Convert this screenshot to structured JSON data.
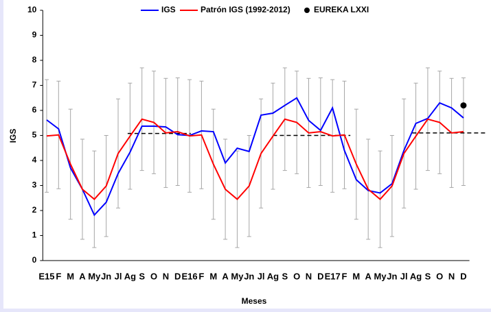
{
  "chart_data": {
    "type": "line",
    "x_label": "Meses",
    "y_label": "IGS",
    "categories": [
      "E15",
      "F",
      "M",
      "A",
      "My",
      "Jn",
      "Jl",
      "Ag",
      "S",
      "O",
      "N",
      "D",
      "E16",
      "F",
      "M",
      "A",
      "My",
      "Jn",
      "Jl",
      "Ag",
      "S",
      "O",
      "N",
      "D",
      "E17",
      "F",
      "M",
      "A",
      "My",
      "Jn",
      "Jl",
      "Ag",
      "S",
      "O",
      "N",
      "D"
    ],
    "series": [
      {
        "name": "IGS",
        "color": "#0000ff",
        "style": "line",
        "values": [
          5.62,
          5.26,
          3.7,
          2.85,
          1.82,
          2.33,
          3.48,
          4.33,
          5.37,
          5.37,
          5.34,
          5.03,
          5.0,
          5.18,
          5.15,
          3.9,
          4.49,
          4.36,
          5.81,
          5.89,
          6.2,
          6.5,
          5.6,
          5.2,
          6.1,
          4.4,
          3.23,
          2.8,
          2.7,
          3.07,
          4.4,
          5.48,
          5.68,
          6.3,
          6.1,
          5.7
        ]
      },
      {
        "name": "Patrón IGS (1992-2012)",
        "color": "#ff0000",
        "style": "line",
        "values": [
          4.98,
          5.02,
          3.85,
          2.85,
          2.45,
          2.98,
          4.28,
          4.97,
          5.65,
          5.52,
          5.1,
          5.15,
          4.98,
          5.02,
          3.85,
          2.85,
          2.45,
          2.98,
          4.28,
          4.97,
          5.65,
          5.52,
          5.1,
          5.15,
          4.98,
          5.02,
          3.85,
          2.85,
          2.45,
          2.98,
          4.28,
          4.97,
          5.65,
          5.52,
          5.1,
          5.15
        ],
        "errors": [
          2.25,
          2.15,
          2.2,
          2.0,
          1.93,
          2.02,
          2.18,
          2.12,
          2.05,
          2.05,
          2.18,
          2.15,
          2.25,
          2.15,
          2.2,
          2.0,
          1.93,
          2.02,
          2.18,
          2.12,
          2.05,
          2.05,
          2.18,
          2.15,
          2.25,
          2.15,
          2.2,
          2.0,
          1.93,
          2.02,
          2.18,
          2.12,
          2.05,
          2.05,
          2.18,
          2.15
        ],
        "error_color": "#a6a6a6"
      },
      {
        "name": "EUREKA LXXI",
        "color": "#000000",
        "style": "marker",
        "values": [
          null,
          null,
          null,
          null,
          null,
          null,
          null,
          null,
          null,
          null,
          null,
          null,
          null,
          null,
          null,
          null,
          null,
          null,
          null,
          null,
          null,
          null,
          null,
          null,
          null,
          null,
          null,
          null,
          null,
          null,
          null,
          null,
          null,
          null,
          null,
          6.2
        ]
      }
    ],
    "reference_lines": [
      {
        "value": 5.08,
        "x": [
          6.8,
          12.1
        ]
      },
      {
        "value": 5.0,
        "x": [
          19.0,
          25.5
        ]
      },
      {
        "value": 5.1,
        "x": [
          30.7,
          37.0
        ]
      }
    ],
    "ylim": [
      0,
      10
    ],
    "yticks": [
      0,
      1,
      2,
      3,
      4,
      5,
      6,
      7,
      8,
      9,
      10
    ],
    "legend": "top"
  }
}
